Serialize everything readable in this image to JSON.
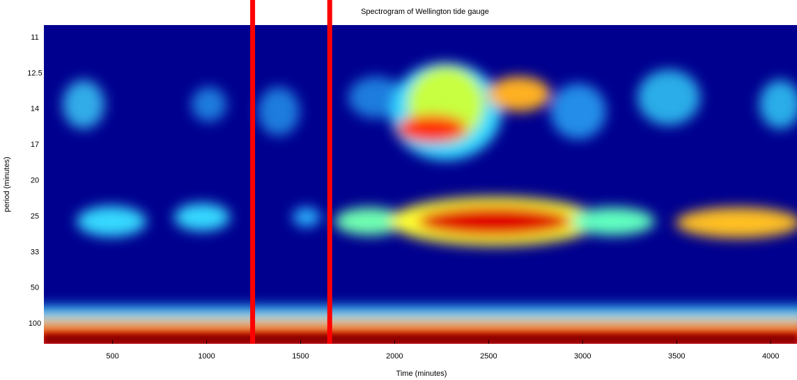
{
  "chart_data": {
    "type": "spectrogram",
    "title": "Spectrogram of Wellington tide gauge",
    "xlabel": "Time (minutes)",
    "ylabel": "period (minutes)",
    "xlim": [
      135,
      4140
    ],
    "xticks": [
      500,
      1000,
      1500,
      2000,
      2500,
      3000,
      3500,
      4000
    ],
    "y_categories": [
      "11",
      "12.5",
      "14",
      "17",
      "20",
      "25",
      "33",
      "50",
      "100"
    ],
    "markers": [
      1245,
      1655
    ],
    "marker_color": "#ff0000"
  }
}
